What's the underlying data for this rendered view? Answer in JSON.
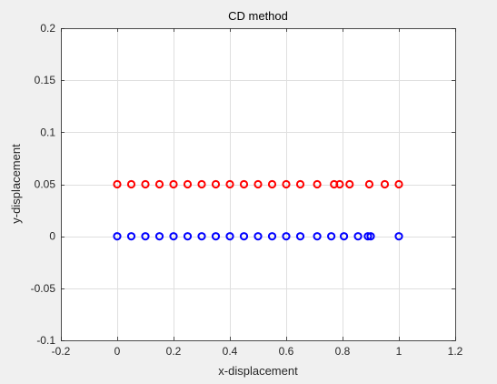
{
  "chart_data": {
    "type": "scatter",
    "title": "CD method",
    "xlabel": "x-displacement",
    "ylabel": "y-displacement",
    "xlim": [
      -0.2,
      1.2
    ],
    "ylim": [
      -0.1,
      0.2
    ],
    "xticks": [
      -0.2,
      0,
      0.2,
      0.4,
      0.6,
      0.8,
      1,
      1.2
    ],
    "xtick_labels": [
      "-0.2",
      "0",
      "0.2",
      "0.4",
      "0.6",
      "0.8",
      "1",
      "1.2"
    ],
    "yticks": [
      -0.1,
      -0.05,
      0,
      0.05,
      0.1,
      0.15,
      0.2
    ],
    "ytick_labels": [
      "-0.1",
      "-0.05",
      "0",
      "0.05",
      "0.1",
      "0.15",
      "0.2"
    ],
    "grid": true,
    "marker": "circle-open",
    "series": [
      {
        "color": "#ff0000",
        "x": [
          0,
          0.05,
          0.1,
          0.15,
          0.2,
          0.25,
          0.3,
          0.35,
          0.4,
          0.45,
          0.5,
          0.55,
          0.6,
          0.65,
          0.71,
          0.77,
          0.79,
          0.825,
          0.895,
          0.95,
          1
        ],
        "y": [
          0.05,
          0.05,
          0.05,
          0.05,
          0.05,
          0.05,
          0.05,
          0.05,
          0.05,
          0.05,
          0.05,
          0.05,
          0.05,
          0.05,
          0.05,
          0.05,
          0.05,
          0.05,
          0.05,
          0.05,
          0.05
        ]
      },
      {
        "color": "#0000ff",
        "x": [
          0,
          0.05,
          0.1,
          0.15,
          0.2,
          0.25,
          0.3,
          0.35,
          0.4,
          0.45,
          0.5,
          0.55,
          0.6,
          0.65,
          0.71,
          0.76,
          0.805,
          0.855,
          0.89,
          0.9,
          1
        ],
        "y": [
          0,
          0,
          0,
          0,
          0,
          0,
          0,
          0,
          0,
          0,
          0,
          0,
          0,
          0,
          0,
          0,
          0,
          0,
          0,
          0,
          0
        ]
      }
    ]
  }
}
